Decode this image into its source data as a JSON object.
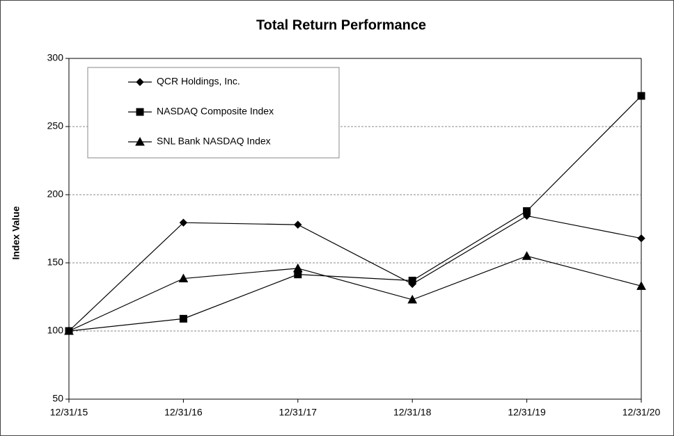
{
  "chart_data": {
    "type": "line",
    "title": "Total Return Performance",
    "y_label": "Index Value",
    "categories": [
      "12/31/15",
      "12/31/16",
      "12/31/17",
      "12/31/18",
      "12/31/19",
      "12/31/20"
    ],
    "series": [
      {
        "name": "QCR Holdings, Inc.",
        "color": "#000000",
        "marker": "diamond",
        "values": [
          100,
          179.5,
          178,
          134.5,
          184.5,
          168
        ]
      },
      {
        "name": "NASDAQ Composite Index",
        "color": "#000000",
        "marker": "square",
        "values": [
          100,
          109,
          141.5,
          137,
          188,
          272.5
        ]
      },
      {
        "name": "SNL Bank NASDAQ Index",
        "color": "#000000",
        "marker": "triangle",
        "values": [
          100,
          138.5,
          146,
          123,
          155,
          133
        ]
      }
    ],
    "ylim": [
      50,
      300
    ],
    "yticks": [
      50,
      100,
      150,
      200,
      250,
      300
    ],
    "grid": true,
    "legend": "upper left"
  }
}
